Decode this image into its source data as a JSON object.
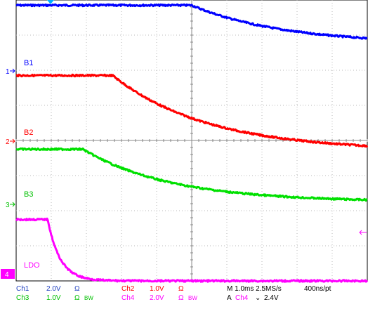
{
  "colors": {
    "ch1": "#0000ff",
    "ch2": "#ff0000",
    "ch3": "#00e000",
    "ch4": "#ff00ff",
    "grid": "#b8b8b8",
    "frame": "#000000",
    "status_blue": "#1f3fbf"
  },
  "trace_labels": {
    "b1": "B1",
    "b2": "B2",
    "b3": "B3",
    "ldo": "LDO"
  },
  "channel_markers": {
    "m1": "1",
    "m2": "2",
    "m3": "3",
    "m4": "4"
  },
  "status_bar": {
    "ch1": {
      "name": "Ch1",
      "scale": "2.0V",
      "coupling": "Ω"
    },
    "ch2": {
      "name": "Ch2",
      "scale": "1.0V",
      "coupling": "Ω"
    },
    "ch3": {
      "name": "Ch3",
      "scale": "1.0V",
      "coupling": "Ω",
      "bw": "BW"
    },
    "ch4": {
      "name": "Ch4",
      "scale": "2.0V",
      "coupling": "Ω",
      "bw": "BW"
    },
    "timebase": "M 1.0ms 2.5MS/s",
    "resolution": "400ns/pt",
    "trigger_prefix": "A",
    "trigger_source": "Ch4",
    "trigger_slope": "⌄",
    "trigger_level": "2.4V"
  },
  "chart_data": {
    "type": "line",
    "x_divisions": 10,
    "y_divisions": 8,
    "series": [
      {
        "name": "B1",
        "shape": "flat-then-decay",
        "high_div": 7.85,
        "low_div": 6.75,
        "break_div": 5.0,
        "tau_div": 2.6
      },
      {
        "name": "B2",
        "shape": "flat-then-decay",
        "high_div": 5.85,
        "low_div": 3.7,
        "break_div": 2.75,
        "tau_div": 2.7
      },
      {
        "name": "B3",
        "shape": "flat-then-decay",
        "high_div": 3.75,
        "low_div": 2.25,
        "break_div": 1.9,
        "tau_div": 2.5
      },
      {
        "name": "LDO",
        "shape": "flat-then-decay",
        "high_div": 1.75,
        "low_div": 0.0,
        "break_div": 0.9,
        "tau_div": 0.35
      }
    ]
  }
}
